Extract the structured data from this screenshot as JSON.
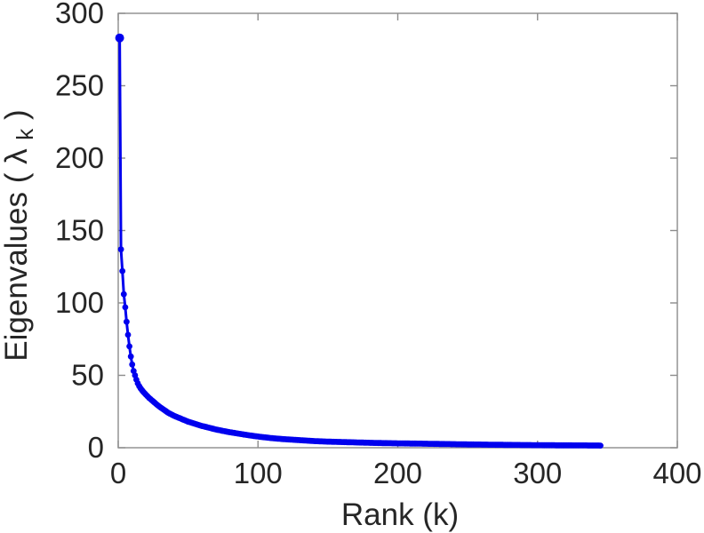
{
  "figure": {
    "background": "#ffffff"
  },
  "chart_data": {
    "type": "line",
    "title": "",
    "xlabel": "Rank (k)",
    "ylabel": "Eigenvalues ( λk )",
    "ylabel_parts": {
      "main": "Eigenvalues ( λ",
      "sub": "k",
      "end": " )"
    },
    "xlim": [
      0,
      400
    ],
    "ylim": [
      0,
      300
    ],
    "x_ticks": [
      0,
      100,
      200,
      300,
      400
    ],
    "y_ticks": [
      0,
      50,
      100,
      150,
      200,
      250,
      300
    ],
    "grid": false,
    "legend": "none",
    "box": true,
    "tick_direction": "in",
    "axis_color": "#8c8c8c",
    "text_color": "#262626",
    "series": [
      {
        "name": "eigenvalue-spectrum",
        "color": "#0000ee",
        "marker": "circle",
        "line_width": 3,
        "n_points": 345,
        "control_points": [
          [
            1,
            283
          ],
          [
            2,
            137
          ],
          [
            3,
            122
          ],
          [
            4,
            106
          ],
          [
            5,
            97
          ],
          [
            6,
            87
          ],
          [
            7,
            78
          ],
          [
            8,
            70
          ],
          [
            9,
            63
          ],
          [
            10,
            57.5
          ],
          [
            11,
            53
          ],
          [
            12,
            50
          ],
          [
            13,
            47
          ],
          [
            14,
            44.5
          ],
          [
            15,
            42.5
          ],
          [
            16,
            41
          ],
          [
            18,
            38.5
          ],
          [
            20,
            36.5
          ],
          [
            22,
            34.5
          ],
          [
            25,
            32
          ],
          [
            28,
            29.5
          ],
          [
            30,
            28
          ],
          [
            33,
            26
          ],
          [
            36,
            24
          ],
          [
            40,
            22
          ],
          [
            45,
            20
          ],
          [
            50,
            18
          ],
          [
            55,
            16.5
          ],
          [
            60,
            15
          ],
          [
            65,
            13.8
          ],
          [
            70,
            12.6
          ],
          [
            75,
            11.6
          ],
          [
            80,
            10.7
          ],
          [
            85,
            9.9
          ],
          [
            90,
            9.1
          ],
          [
            95,
            8.4
          ],
          [
            100,
            7.7
          ],
          [
            110,
            6.6
          ],
          [
            120,
            5.8
          ],
          [
            130,
            5.2
          ],
          [
            140,
            4.6
          ],
          [
            150,
            4.2
          ],
          [
            165,
            3.8
          ],
          [
            180,
            3.4
          ],
          [
            195,
            3.1
          ],
          [
            210,
            2.9
          ],
          [
            230,
            2.6
          ],
          [
            250,
            2.3
          ],
          [
            270,
            2.05
          ],
          [
            290,
            1.85
          ],
          [
            310,
            1.7
          ],
          [
            330,
            1.6
          ],
          [
            345,
            1.5
          ]
        ]
      }
    ]
  }
}
